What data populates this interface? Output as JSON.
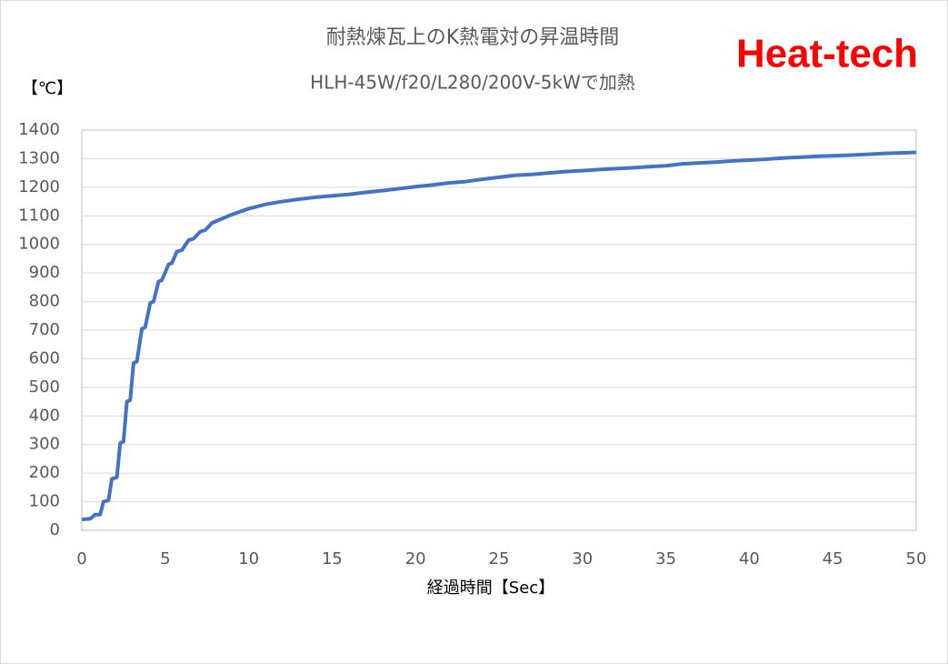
{
  "chart_data": {
    "type": "line",
    "title": "耐熱煉瓦上のK熱電対の昇温時間",
    "subtitle": "HLH-45W/f20/L280/200V-5kWで加熱",
    "brand": "Heat-tech",
    "y_label": "【℃】",
    "x_label": "経過時間【Sec】",
    "x": [
      0,
      0.5,
      0.8,
      1.1,
      1.3,
      1.6,
      1.8,
      2.1,
      2.3,
      2.5,
      2.7,
      2.9,
      3.1,
      3.3,
      3.6,
      3.8,
      4.1,
      4.3,
      4.6,
      4.8,
      5.2,
      5.4,
      5.7,
      6.0,
      6.4,
      6.7,
      7.1,
      7.4,
      7.8,
      8.2,
      8.8,
      9.5,
      10,
      11,
      12,
      13,
      14,
      15,
      16,
      17,
      18,
      19,
      20,
      21,
      22,
      23,
      24,
      25,
      26,
      27,
      28,
      29,
      30,
      31,
      32,
      33,
      34,
      35,
      36,
      37,
      38,
      39,
      40,
      41,
      42,
      43,
      44,
      45,
      46,
      47,
      48,
      49,
      50
    ],
    "series": [
      {
        "color": "#4472c4",
        "values": [
          38,
          40,
          55,
          55,
          100,
          105,
          180,
          185,
          305,
          310,
          450,
          455,
          585,
          590,
          705,
          710,
          795,
          800,
          870,
          875,
          930,
          935,
          975,
          980,
          1015,
          1020,
          1045,
          1050,
          1075,
          1085,
          1100,
          1115,
          1125,
          1140,
          1150,
          1158,
          1165,
          1170,
          1175,
          1182,
          1188,
          1195,
          1202,
          1208,
          1215,
          1220,
          1228,
          1235,
          1242,
          1245,
          1250,
          1255,
          1258,
          1262,
          1265,
          1268,
          1272,
          1275,
          1282,
          1285,
          1288,
          1292,
          1295,
          1298,
          1302,
          1305,
          1308,
          1310,
          1312,
          1315,
          1318,
          1320,
          1322
        ]
      }
    ],
    "xlim": [
      0,
      50
    ],
    "xticks": [
      0,
      5,
      10,
      15,
      20,
      25,
      30,
      35,
      40,
      45,
      50
    ],
    "ylim": [
      0,
      1400
    ],
    "yticks": [
      0,
      100,
      200,
      300,
      400,
      500,
      600,
      700,
      800,
      900,
      1000,
      1100,
      1200,
      1300,
      1400
    ],
    "grid": true
  }
}
